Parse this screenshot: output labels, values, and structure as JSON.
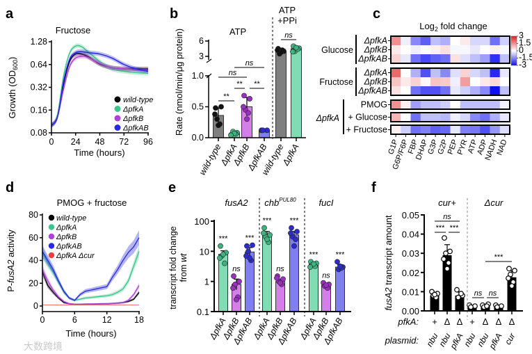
{
  "panel_letters": [
    "a",
    "b",
    "c",
    "d",
    "e",
    "f"
  ],
  "watermark": "大数跨境",
  "chart_data": [
    {
      "id": "a",
      "type": "line",
      "title": "Fructose",
      "xlabel": "Time (hours)",
      "ylabel": "Growth (OD",
      "ylabel_sub": "600",
      "ylabel_end": ")",
      "yscale": "log2",
      "ylim": [
        0.08,
        1.28
      ],
      "xlim": [
        0,
        96
      ],
      "yticks": [
        0.08,
        0.16,
        0.32,
        0.64,
        1.28
      ],
      "ytick_labels": [
        "0.08",
        "0.16",
        "0.32",
        "0.64",
        "1.28"
      ],
      "xticks": [
        0,
        24,
        48,
        72,
        96
      ],
      "xtick_labels": [
        "0",
        "24",
        "48",
        "72",
        "96"
      ],
      "legend_position": "bottom-right",
      "x": [
        0,
        6,
        12,
        18,
        24,
        30,
        36,
        48,
        60,
        72,
        84,
        96
      ],
      "series": [
        {
          "name": "wild-type",
          "color": "#000000",
          "y": [
            0.1,
            0.13,
            0.35,
            0.7,
            0.88,
            0.88,
            0.82,
            0.65,
            0.58,
            0.56,
            0.56,
            0.56
          ]
        },
        {
          "name": "ΔpfkA",
          "color": "#3cc48a",
          "y": [
            0.1,
            0.14,
            0.45,
            0.9,
            1.12,
            1.1,
            0.95,
            0.7,
            0.56,
            0.52,
            0.5,
            0.49
          ]
        },
        {
          "name": "ΔpfkB",
          "color": "#b040d8",
          "y": [
            0.1,
            0.13,
            0.3,
            0.6,
            0.78,
            0.82,
            0.8,
            0.66,
            0.58,
            0.56,
            0.55,
            0.54
          ]
        },
        {
          "name": "ΔpfkAB",
          "color": "#2828e0",
          "y": [
            0.1,
            0.13,
            0.38,
            0.75,
            0.92,
            0.95,
            0.92,
            0.88,
            0.78,
            0.64,
            0.56,
            0.52
          ]
        }
      ]
    },
    {
      "id": "b",
      "type": "bar",
      "title": "ATP",
      "title2_line1": "ATP",
      "title2_line2": "+PPi",
      "ylabel": "Rate (nmol/min/μg protein)",
      "ylim_lower": [
        0,
        1.0
      ],
      "ylim_upper": [
        3,
        6
      ],
      "ytick_labels_lower": [
        "0.0",
        "0.5",
        "1.0"
      ],
      "ytick_labels_upper": [
        "3",
        "6"
      ],
      "categories": [
        "wild-type",
        "ΔpfkA",
        "ΔpfkB",
        "ΔpfkAB",
        "wild-type",
        "ΔpfkA"
      ],
      "values": [
        0.36,
        0.07,
        0.5,
        0.12,
        4.0,
        4.5
      ],
      "errors": [
        0.12,
        0.03,
        0.15,
        0.01,
        0.6,
        0.5
      ],
      "points": [
        [
          0.48,
          0.5,
          0.3,
          0.22,
          0.2,
          0.38
        ],
        [
          0.05,
          0.08,
          0.1,
          0.06,
          0.07,
          0.04
        ],
        [
          0.68,
          0.63,
          0.45,
          0.4,
          0.3,
          0.5
        ],
        [
          0.12,
          0.12,
          0.12
        ],
        [
          4.5,
          4.0,
          3.5,
          4.2,
          3.8,
          4.2
        ],
        [
          5.0,
          4.6,
          4.0,
          4.4,
          4.7,
          3.9
        ]
      ],
      "bar_colors": [
        "#7f7f7f",
        "#7fdcb3",
        "#d47fe8",
        "#7f7ff0",
        "#7f7f7f",
        "#7fdcb3"
      ],
      "dot_colors": [
        "#111111",
        "#3db37f",
        "#9b2fc0",
        "#2b2bd0",
        "#111111",
        "#3db37f"
      ],
      "significance": [
        {
          "from": 0,
          "to": 1,
          "label": "**"
        },
        {
          "from": 1,
          "to": 2,
          "label": "**"
        },
        {
          "from": 2,
          "to": 3,
          "label": "**"
        },
        {
          "from": 0,
          "to": 2,
          "label": "ns"
        },
        {
          "from": 1,
          "to": 3,
          "label": "ns"
        },
        {
          "from": 4,
          "to": 5,
          "label": "ns"
        }
      ]
    },
    {
      "id": "c",
      "type": "heatmap",
      "title": "Log",
      "title_sub": "2",
      "title_end": " fold change",
      "colorbar_range": [
        -3,
        3
      ],
      "colorbar_labels": [
        "3",
        "1.5",
        "0",
        "-1.5",
        "-3"
      ],
      "columns": [
        "G1P",
        "G6P/F6P",
        "FBP",
        "DHAP",
        "G3P",
        "G2P",
        "PEP",
        "PYR",
        "ATP",
        "ADP",
        "NADH",
        "NAD"
      ],
      "groups": [
        {
          "label": "Glucose",
          "rows": [
            0,
            1,
            2
          ]
        },
        {
          "label": "Fructose",
          "rows": [
            3,
            4,
            5
          ]
        },
        {
          "label": "ΔpfkA",
          "rows": [
            6,
            7,
            8
          ]
        }
      ],
      "rows": [
        {
          "label": "ΔpfkA",
          "values": [
            1.5,
            -0.2,
            -1.5,
            -2.0,
            -0.8,
            -1.0,
            0.0,
            0.3,
            -0.5,
            -0.5,
            -1.8,
            -0.6
          ]
        },
        {
          "label": "ΔpfkB",
          "values": [
            0.3,
            0.0,
            -0.2,
            0.0,
            0.2,
            0.4,
            -0.1,
            -0.1,
            -0.3,
            0.0,
            0.2,
            -0.1
          ]
        },
        {
          "label": "ΔpfkAB",
          "values": [
            0.6,
            -0.3,
            -1.8,
            -2.3,
            -2.0,
            -1.8,
            0.4,
            -0.4,
            -0.8,
            -1.2,
            -2.6,
            -0.8
          ]
        },
        {
          "label": "ΔpfkA",
          "values": [
            2.0,
            0.0,
            -1.0,
            -2.2,
            -0.8,
            -1.5,
            -0.4,
            0.6,
            -0.5,
            -0.8,
            -2.7,
            -0.3
          ]
        },
        {
          "label": "ΔpfkB",
          "values": [
            0.8,
            0.3,
            0.6,
            0.1,
            0.8,
            0.7,
            -0.2,
            1.3,
            0.0,
            0.3,
            0.5,
            0.0
          ]
        },
        {
          "label": "ΔpfkAB",
          "values": [
            0.4,
            0.0,
            -1.8,
            -2.2,
            -2.2,
            -1.8,
            -0.3,
            -0.6,
            -1.0,
            -1.5,
            -3.0,
            -0.8
          ]
        },
        {
          "label": "PMOG",
          "values": [
            1.5,
            0.2,
            -1.2,
            -0.8,
            -0.8,
            -0.6,
            0.0,
            -0.8,
            -0.8,
            -0.8,
            -0.8,
            -0.2
          ]
        },
        {
          "label": "+ Glucose",
          "values": [
            1.0,
            0.0,
            -1.8,
            -0.8,
            -0.8,
            -0.9,
            -0.2,
            -0.5,
            -1.5,
            -1.8,
            -1.0,
            -0.3
          ]
        },
        {
          "label": "+ Fructose",
          "values": [
            0.2,
            -0.6,
            -1.8,
            -1.6,
            -2.0,
            -1.9,
            -0.3,
            -1.6,
            -1.7,
            -2.2,
            -1.3,
            -0.4
          ]
        }
      ]
    },
    {
      "id": "d",
      "type": "line",
      "title": "PMOG + fructose",
      "xlabel": "Time (hours)",
      "ylabel_pre": "P-",
      "ylabel_it": "fusA2",
      "ylabel_end": " activity",
      "ylim": [
        0,
        80
      ],
      "xlim": [
        0,
        18
      ],
      "ytick_labels": [
        "0",
        "20",
        "40",
        "60",
        "80"
      ],
      "xtick_labels": [
        "0",
        "6",
        "12",
        "18"
      ],
      "legend_position": "top-left",
      "x": [
        0,
        1,
        2,
        3,
        4,
        5,
        6,
        7,
        8,
        9,
        10,
        11,
        12,
        13,
        14,
        15,
        16,
        17,
        18
      ],
      "series": [
        {
          "name": "wild-type",
          "color": "#000000",
          "y": [
            30,
            18,
            12,
            7,
            3,
            2,
            1.5,
            1.5,
            1.6,
            1.7,
            1.8,
            1.9,
            2,
            2.2,
            2.5,
            3,
            4,
            6,
            12
          ]
        },
        {
          "name": "ΔpfkA",
          "color": "#3cc48a",
          "y": [
            47,
            38,
            30,
            21,
            12,
            7,
            5,
            6,
            7,
            7.5,
            8,
            8.5,
            9,
            10,
            12,
            15,
            22,
            35,
            48
          ]
        },
        {
          "name": "ΔpfkB",
          "color": "#b040d8",
          "y": [
            32,
            22,
            14,
            8,
            4,
            2,
            1.5,
            1.5,
            1.6,
            1.7,
            1.8,
            1.9,
            2,
            2.2,
            2.5,
            3,
            5,
            10,
            18
          ]
        },
        {
          "name": "ΔpfkAB",
          "color": "#2828e0",
          "y": [
            48,
            40,
            32,
            22,
            13,
            7,
            5,
            10,
            13,
            14,
            15,
            16,
            17,
            25,
            32,
            40,
            47,
            52,
            60
          ]
        },
        {
          "name": "ΔpfkA Δcur",
          "color": "#e84040",
          "y": [
            1,
            1,
            1,
            1,
            1,
            1,
            1,
            1,
            1,
            1,
            1,
            1,
            1,
            1,
            1,
            1,
            1,
            1,
            1
          ]
        }
      ]
    },
    {
      "id": "e",
      "type": "bar",
      "yscale": "log10",
      "ylim": [
        0.1,
        100
      ],
      "ylabel_line1": "transcript fold change",
      "ylabel_line2_pre": "from ",
      "ylabel_line2_it": "wt",
      "ytick_labels": [
        "0.1",
        "1",
        "10",
        "100"
      ],
      "groups": [
        {
          "label": "fusA2",
          "sup": ""
        },
        {
          "label": "chb",
          "sup": "PUL80"
        },
        {
          "label": "fucI",
          "sup": ""
        }
      ],
      "categories": [
        "ΔpfkA",
        "ΔpfkB",
        "ΔpfkAB",
        "ΔpfkA",
        "ΔpfkB",
        "ΔpfkAB",
        "ΔpfkA",
        "ΔpfkB",
        "ΔpfkAB"
      ],
      "values": [
        8,
        0.8,
        9.5,
        35,
        1.0,
        35,
        3.8,
        0.75,
        3.0
      ],
      "errors_factor": [
        1.3,
        1.5,
        1.4,
        1.3,
        1.2,
        1.3,
        1.15,
        1.15,
        1.2
      ],
      "significance": [
        "***",
        "ns",
        "***",
        "***",
        "ns",
        "***",
        "***",
        "ns",
        "***"
      ],
      "points": [
        [
          15,
          9,
          7,
          4,
          8,
          6
        ],
        [
          1.5,
          1.0,
          0.8,
          0.3,
          0.25,
          0.6
        ],
        [
          15,
          16,
          10,
          5,
          6,
          7
        ],
        [
          60,
          35,
          30,
          20,
          25,
          40
        ],
        [
          1.5,
          1.2,
          1.0,
          0.8,
          0.9,
          1.3
        ],
        [
          60,
          45,
          30,
          25,
          15,
          40
        ],
        [
          4.5,
          4,
          3.5,
          3.2,
          3.8,
          3
        ],
        [
          0.9,
          0.8,
          0.7,
          0.6,
          0.75
        ],
        [
          4.5,
          3,
          2.5,
          2.8,
          3.2
        ]
      ],
      "bar_colors": [
        "#7fdcb3",
        "#d47fe8",
        "#7f7ff0"
      ],
      "dot_colors": [
        "#3db37f",
        "#9b2fc0",
        "#2b2bd0"
      ]
    },
    {
      "id": "f",
      "type": "bar",
      "ylim": [
        0,
        0.05
      ],
      "ylabel_it": "fusA2",
      "ylabel_end": " transcript amount",
      "ytick_labels": [
        "0.00",
        "0.01",
        "0.02",
        "0.03",
        "0.04",
        "0.05"
      ],
      "groups": [
        {
          "label": "cur+"
        },
        {
          "label": "Δcur"
        }
      ],
      "row_labels": [
        "pfkA:",
        "plasmid:"
      ],
      "pfkA": [
        "+",
        "Δ",
        "Δ",
        "+",
        "Δ",
        "Δ",
        "Δ"
      ],
      "plasmid": [
        "nbu",
        "nbu",
        "pfkA",
        "nbu",
        "nbu",
        "pfkA",
        "cur"
      ],
      "values": [
        0.008,
        0.029,
        0.008,
        0.0025,
        0.0025,
        0.0025,
        0.0175
      ],
      "errors": [
        0.0015,
        0.0055,
        0.0018,
        0.0004,
        0.0006,
        0.0004,
        0.0035
      ],
      "points": [
        [
          0.01,
          0.009,
          0.008,
          0.007,
          0.0085
        ],
        [
          0.038,
          0.031,
          0.03,
          0.025,
          0.022,
          0.027
        ],
        [
          0.011,
          0.008,
          0.007,
          0.009
        ],
        [
          0.003,
          0.0025,
          0.002
        ],
        [
          0.003,
          0.0035,
          0.002,
          0.0025
        ],
        [
          0.003,
          0.0025,
          0.002
        ],
        [
          0.022,
          0.021,
          0.019,
          0.015,
          0.013,
          0.017
        ]
      ],
      "significance": [
        {
          "from": 0,
          "to": 2,
          "label": "ns"
        },
        {
          "from": 0,
          "to": 1,
          "label": "***"
        },
        {
          "from": 1,
          "to": 2,
          "label": "***"
        },
        {
          "from": 4,
          "to": 6,
          "label": "***"
        },
        {
          "from": 3,
          "to": 4,
          "label": "ns"
        },
        {
          "from": 4,
          "to": 5,
          "label": "ns"
        }
      ]
    }
  ]
}
